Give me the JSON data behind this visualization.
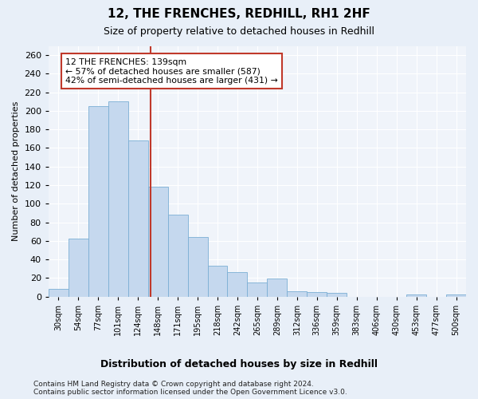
{
  "title1": "12, THE FRENCHES, REDHILL, RH1 2HF",
  "title2": "Size of property relative to detached houses in Redhill",
  "xlabel": "Distribution of detached houses by size in Redhill",
  "ylabel": "Number of detached properties",
  "categories": [
    "30sqm",
    "54sqm",
    "77sqm",
    "101sqm",
    "124sqm",
    "148sqm",
    "171sqm",
    "195sqm",
    "218sqm",
    "242sqm",
    "265sqm",
    "289sqm",
    "312sqm",
    "336sqm",
    "359sqm",
    "383sqm",
    "406sqm",
    "430sqm",
    "453sqm",
    "477sqm",
    "500sqm"
  ],
  "values": [
    8,
    62,
    205,
    210,
    168,
    118,
    88,
    64,
    33,
    26,
    15,
    19,
    6,
    5,
    4,
    0,
    0,
    0,
    2,
    0,
    2
  ],
  "bar_color": "#c5d8ee",
  "bar_edge_color": "#7bafd4",
  "vline_x_index": 4.65,
  "vline_color": "#c0392b",
  "annotation_text": "12 THE FRENCHES: 139sqm\n← 57% of detached houses are smaller (587)\n42% of semi-detached houses are larger (431) →",
  "annotation_box_facecolor": "#ffffff",
  "annotation_box_edgecolor": "#c0392b",
  "ylim": [
    0,
    270
  ],
  "yticks": [
    0,
    20,
    40,
    60,
    80,
    100,
    120,
    140,
    160,
    180,
    200,
    220,
    240,
    260
  ],
  "footnote1": "Contains HM Land Registry data © Crown copyright and database right 2024.",
  "footnote2": "Contains public sector information licensed under the Open Government Licence v3.0.",
  "bg_color": "#e8eff8",
  "plot_bg": "#f0f4fa"
}
